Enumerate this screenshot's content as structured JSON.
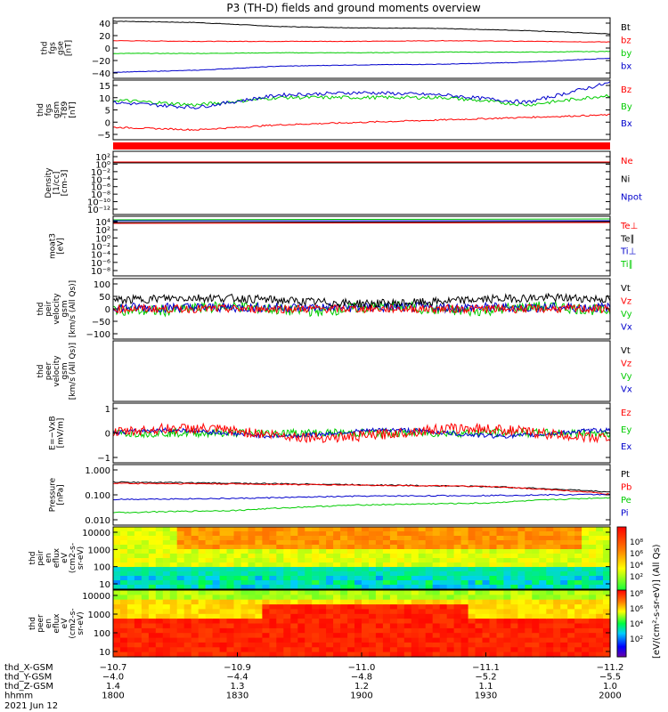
{
  "title": "P3 (TH-D) fields and ground moments overview",
  "panels": [
    {
      "id": "fgs",
      "ylabel": [
        "thd",
        "fgs",
        "gse",
        "[nT]"
      ],
      "ticks": [
        "40",
        "20",
        "0",
        "−20",
        "−40"
      ],
      "legend": [
        {
          "text": "Bt",
          "color": "#000000"
        },
        {
          "text": "bz",
          "color": "#ff0000"
        },
        {
          "text": "by",
          "color": "#00cc00"
        },
        {
          "text": "bx",
          "color": "#0000cc"
        }
      ]
    },
    {
      "id": "fgs-offset",
      "ylabel": [
        "thd",
        "fgs",
        "gsm",
        "-T89",
        "[nT]"
      ],
      "ticks": [
        "15",
        "10",
        "5",
        "0",
        "−5"
      ],
      "legend": [
        {
          "text": "Bz",
          "color": "#ff0000"
        },
        {
          "text": "By",
          "color": "#00cc00"
        },
        {
          "text": "Bx",
          "color": "#0000cc"
        }
      ]
    },
    {
      "id": "density",
      "ylabel": [
        "Density",
        "[1/cc]",
        "[cm-3]"
      ],
      "ticks": [
        "10²",
        "10⁰",
        "10⁻²",
        "10⁻⁴",
        "10⁻⁶",
        "10⁻⁸",
        "10⁻¹⁰",
        "10⁻¹²"
      ],
      "legend": [
        {
          "text": "Ne",
          "color": "#ff0000"
        },
        {
          "text": "Ni",
          "color": "#000000"
        },
        {
          "text": "Npot",
          "color": "#0000cc"
        }
      ]
    },
    {
      "id": "temperature",
      "ylabel": [
        "moat3",
        "[eV]"
      ],
      "ticks": [
        "10⁴",
        "10²",
        "10⁰",
        "10⁻²",
        "10⁻⁴",
        "10⁻⁶",
        "10⁻⁸"
      ],
      "legend": [
        {
          "text": "Te⊥",
          "color": "#ff0000"
        },
        {
          "text": "Te∥",
          "color": "#000000"
        },
        {
          "text": "Ti⊥",
          "color": "#0000cc"
        },
        {
          "text": "Ti∥",
          "color": "#00cc00"
        }
      ]
    },
    {
      "id": "peir-velocity",
      "ylabel": [
        "thd",
        "peir",
        "velocity",
        "gsm",
        "[km/s (All Qs)]"
      ],
      "ticks": [
        "100",
        "50",
        "0",
        "−50",
        "−100"
      ],
      "legend": [
        {
          "text": "Vt",
          "color": "#000000"
        },
        {
          "text": "Vz",
          "color": "#ff0000"
        },
        {
          "text": "Vy",
          "color": "#00cc00"
        },
        {
          "text": "Vx",
          "color": "#0000cc"
        }
      ]
    },
    {
      "id": "peer-velocity",
      "ylabel": [
        "thd",
        "peer",
        "velocity",
        "gsm",
        "[km/s (All Qs)]"
      ],
      "ticks": [],
      "legend": [
        {
          "text": "Vt",
          "color": "#000000"
        },
        {
          "text": "Vz",
          "color": "#ff0000"
        },
        {
          "text": "Vy",
          "color": "#00cc00"
        },
        {
          "text": "Vx",
          "color": "#0000cc"
        }
      ]
    },
    {
      "id": "efield",
      "ylabel": [
        "E=−VxB",
        "[mV/m]"
      ],
      "ticks": [
        "1",
        "0",
        "−1"
      ],
      "legend": [
        {
          "text": "Ez",
          "color": "#ff0000"
        },
        {
          "text": "Ey",
          "color": "#00cc00"
        },
        {
          "text": "Ex",
          "color": "#0000cc"
        }
      ]
    },
    {
      "id": "pressure",
      "ylabel": [
        "Pressure",
        "[nPa]"
      ],
      "ticks": [
        "1.000",
        "0.100",
        "0.010"
      ],
      "legend": [
        {
          "text": "Pt",
          "color": "#000000"
        },
        {
          "text": "Pb",
          "color": "#ff0000"
        },
        {
          "text": "Pe",
          "color": "#00cc00"
        },
        {
          "text": "Pi",
          "color": "#0000cc"
        }
      ]
    },
    {
      "id": "peir-spec",
      "ylabel": [
        "thd",
        "peir",
        "en",
        "eflux",
        "eV",
        "(cm2-s-",
        "sr-eV)"
      ],
      "ticks": [
        "10000",
        "1000",
        "100",
        "10"
      ],
      "legend": []
    },
    {
      "id": "peer-spec",
      "ylabel": [
        "thd",
        "peer",
        "en",
        "eflux",
        "eV",
        "(cm2-s-",
        "sr-eV)"
      ],
      "ticks": [
        "10000",
        "1000",
        "100",
        "10"
      ],
      "legend": []
    }
  ],
  "colorbar": {
    "label": "[eV/(cm²-s-sr-eV)] (All Qs)",
    "ticks1": [
      "10⁸",
      "10⁶",
      "10⁴",
      "10²"
    ],
    "ticks2": [
      "10⁸",
      "10⁶",
      "10⁴",
      "10²"
    ]
  },
  "axis": {
    "row_labels": [
      "thd_X-GSM",
      "thd_Y-GSM",
      "thd_Z-GSM",
      "hhmm"
    ],
    "columns": [
      [
        "−10.7",
        "−4.0",
        "1.4",
        "1800"
      ],
      [
        "−10.9",
        "−4.4",
        "1.3",
        "1830"
      ],
      [
        "−11.0",
        "−4.8",
        "1.2",
        "1900"
      ],
      [
        "−11.1",
        "−5.2",
        "1.1",
        "1930"
      ],
      [
        "−11.2",
        "−5.5",
        "1.0",
        "2000"
      ]
    ],
    "date": "2021 Jun 12"
  },
  "chart_data": {
    "type": "line",
    "title": "P3 (TH-D) fields and ground moments overview",
    "x_range": [
      "18:00",
      "20:00"
    ],
    "x_tick_labels": [
      "1800",
      "1830",
      "1900",
      "1930",
      "2000"
    ],
    "series": [
      {
        "name": "Bt",
        "panel": "fgs",
        "x": [
          "18:00",
          "18:20",
          "18:40",
          "19:00",
          "19:20",
          "19:40",
          "20:00"
        ],
        "values": [
          40,
          38,
          32,
          30,
          29,
          26,
          21
        ]
      },
      {
        "name": "bz",
        "panel": "fgs",
        "x": [
          "18:00",
          "18:20",
          "18:40",
          "19:00",
          "19:20",
          "19:40",
          "20:00"
        ],
        "values": [
          11,
          10,
          10,
          10,
          11,
          10,
          9
        ]
      },
      {
        "name": "by",
        "panel": "fgs",
        "x": [
          "18:00",
          "18:20",
          "18:40",
          "19:00",
          "19:20",
          "19:40",
          "20:00"
        ],
        "values": [
          -8,
          -8,
          -7,
          -7,
          -6,
          -6,
          -5
        ]
      },
      {
        "name": "bx",
        "panel": "fgs",
        "x": [
          "18:00",
          "18:20",
          "18:40",
          "19:00",
          "19:20",
          "19:40",
          "20:00"
        ],
        "values": [
          -36,
          -33,
          -27,
          -25,
          -24,
          -21,
          -15
        ]
      },
      {
        "name": "Bz",
        "panel": "fgs-offset",
        "x": [
          "18:00",
          "18:20",
          "18:40",
          "19:00",
          "19:20",
          "19:40",
          "20:00"
        ],
        "values": [
          -3,
          -4,
          -2,
          -1,
          0,
          1,
          2
        ]
      },
      {
        "name": "By",
        "panel": "fgs-offset",
        "x": [
          "18:00",
          "18:20",
          "18:40",
          "19:00",
          "19:20",
          "19:40",
          "20:00"
        ],
        "values": [
          8,
          6,
          9,
          9,
          9,
          6,
          10
        ]
      },
      {
        "name": "Bx",
        "panel": "fgs-offset",
        "x": [
          "18:00",
          "18:20",
          "18:40",
          "19:00",
          "19:20",
          "19:40",
          "20:00"
        ],
        "values": [
          7,
          5,
          10,
          11,
          10,
          7,
          15
        ]
      },
      {
        "name": "Pt",
        "panel": "pressure",
        "x": [
          "18:00",
          "18:30",
          "19:00",
          "19:30",
          "20:00"
        ],
        "values": [
          0.7,
          0.6,
          0.5,
          0.4,
          0.2
        ]
      },
      {
        "name": "Pb",
        "panel": "pressure",
        "x": [
          "18:00",
          "18:30",
          "19:00",
          "19:30",
          "20:00"
        ],
        "values": [
          0.6,
          0.55,
          0.48,
          0.4,
          0.15
        ]
      },
      {
        "name": "Pe",
        "panel": "pressure",
        "x": [
          "18:00",
          "18:30",
          "19:00",
          "19:30",
          "20:00"
        ],
        "values": [
          0.015,
          0.02,
          0.04,
          0.05,
          0.1
        ]
      },
      {
        "name": "Pi",
        "panel": "pressure",
        "x": [
          "18:00",
          "18:30",
          "19:00",
          "19:30",
          "20:00"
        ],
        "values": [
          0.08,
          0.09,
          0.12,
          0.13,
          0.15
        ]
      }
    ]
  }
}
